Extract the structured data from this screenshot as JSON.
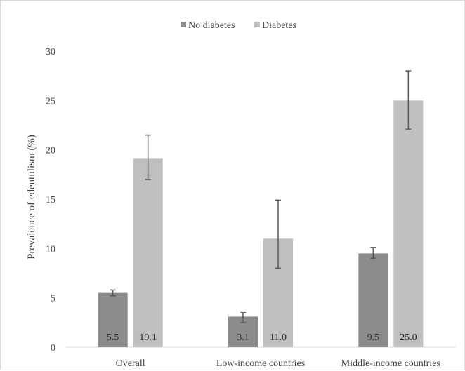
{
  "chart_data": {
    "type": "bar",
    "title": "",
    "xlabel": "",
    "ylabel": "Prevalence of edentulism (%)",
    "ylim": [
      0,
      30
    ],
    "yticks": [
      0,
      5,
      10,
      15,
      20,
      25,
      30
    ],
    "grid": false,
    "legend_position": "top",
    "categories": [
      "Overall",
      "Low-income countries",
      "Middle-income countries"
    ],
    "series": [
      {
        "name": "No diabetes",
        "color": "#8c8c8c",
        "values": [
          5.5,
          3.1,
          9.5
        ],
        "labels": [
          "5.5",
          "3.1",
          "9.5"
        ],
        "error_low": [
          5.2,
          2.5,
          9.0
        ],
        "error_high": [
          5.8,
          3.5,
          10.1
        ]
      },
      {
        "name": "Diabetes",
        "color": "#bfbfbf",
        "values": [
          19.1,
          11.0,
          25.0
        ],
        "labels": [
          "19.1",
          "11.0",
          "25.0"
        ],
        "error_low": [
          17.0,
          8.0,
          22.1
        ],
        "error_high": [
          21.5,
          14.9,
          28.0
        ]
      }
    ]
  }
}
